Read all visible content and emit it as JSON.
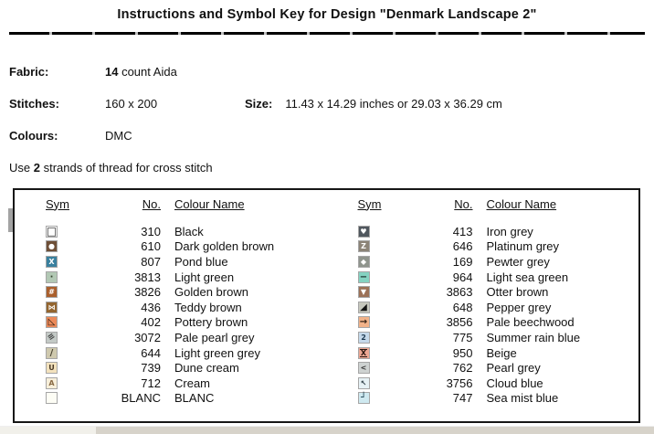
{
  "title": "Instructions and Symbol Key for Design \"Denmark Landscape 2\"",
  "info": {
    "fabric_label": "Fabric:",
    "fabric_value_bold": "14",
    "fabric_value_rest": " count Aida",
    "stitches_label": "Stitches:",
    "stitches_value": "160 x 200",
    "size_label": "Size:",
    "size_value": "11.43 x 14.29 inches or 29.03 x 36.29 cm",
    "colours_label": "Colours:",
    "colours_value": "DMC",
    "strands_prefix": "Use ",
    "strands_bold": "2",
    "strands_suffix": " strands of thread for cross stitch"
  },
  "key_table": {
    "headers": [
      "Sym",
      "No.",
      "Colour Name"
    ],
    "columns": [
      [
        {
          "no": "310",
          "name": "Black",
          "glyph": "□",
          "cls": "sq",
          "bg": "#ffffff",
          "fg": "#1a1a1a"
        },
        {
          "no": "610",
          "name": "Dark golden brown",
          "glyph": "●",
          "cls": "sm",
          "bg": "#6e4f37",
          "fg": "#ffffff"
        },
        {
          "no": "807",
          "name": "Pond blue",
          "glyph": "X",
          "cls": "sm",
          "bg": "#39809e",
          "fg": "#ffffff"
        },
        {
          "no": "3813",
          "name": "Light green",
          "glyph": "·",
          "cls": "",
          "bg": "#b2c8b4",
          "fg": "#36452f"
        },
        {
          "no": "3826",
          "name": "Golden brown",
          "glyph": "#",
          "cls": "sm",
          "bg": "#aa5f2c",
          "fg": "#ffffff"
        },
        {
          "no": "436",
          "name": "Teddy brown",
          "glyph": "⋈",
          "cls": "sm",
          "bg": "#93652f",
          "fg": "#ffffff"
        },
        {
          "no": "402",
          "name": "Pottery brown",
          "glyph": "◺",
          "cls": "",
          "bg": "#ec8a59",
          "fg": "#1e140e"
        },
        {
          "no": "3072",
          "name": "Pale pearl grey",
          "glyph": "≡",
          "cls": "rot",
          "bg": "#c3c9c6",
          "fg": "#3c3c3c"
        },
        {
          "no": "644",
          "name": "Light green grey",
          "glyph": "/",
          "cls": "",
          "bg": "#cfc9ae",
          "fg": "#46412f"
        },
        {
          "no": "739",
          "name": "Dune cream",
          "glyph": "U",
          "cls": "sm",
          "bg": "#f3e2bd",
          "fg": "#4a3a26"
        },
        {
          "no": "712",
          "name": "Cream",
          "glyph": "A",
          "cls": "sm",
          "bg": "#f7efda",
          "fg": "#8a6c46"
        },
        {
          "no": "BLANC",
          "name": "BLANC",
          "glyph": "",
          "cls": "",
          "bg": "#fdfdf5",
          "fg": "#000000"
        }
      ],
      [
        {
          "no": "413",
          "name": "Iron grey",
          "glyph": "♥",
          "cls": "sm",
          "bg": "#50575e",
          "fg": "#ffffff"
        },
        {
          "no": "646",
          "name": "Platinum grey",
          "glyph": "Z",
          "cls": "sm",
          "bg": "#8b8377",
          "fg": "#ffffff"
        },
        {
          "no": "169",
          "name": "Pewter grey",
          "glyph": "◆",
          "cls": "sm",
          "bg": "#8f948d",
          "fg": "#ffffff"
        },
        {
          "no": "964",
          "name": "Light sea green",
          "glyph": "−",
          "cls": "",
          "bg": "#84d2c1",
          "fg": "#172a27"
        },
        {
          "no": "3863",
          "name": "Otter brown",
          "glyph": "▼",
          "cls": "sm",
          "bg": "#9b7157",
          "fg": "#ffffff"
        },
        {
          "no": "648",
          "name": "Pepper grey",
          "glyph": "◢",
          "cls": "",
          "bg": "#c6c7bd",
          "fg": "#141414"
        },
        {
          "no": "3856",
          "name": "Pale beechwood",
          "glyph": "→",
          "cls": "",
          "bg": "#f1b289",
          "fg": "#352418"
        },
        {
          "no": "775",
          "name": "Summer rain blue",
          "glyph": "2",
          "cls": "sm",
          "bg": "#c5d9ea",
          "fg": "#1e3a52"
        },
        {
          "no": "950",
          "name": "Beige",
          "glyph": "X",
          "cls": "hg",
          "bg": "#eca793",
          "fg": "#281812"
        },
        {
          "no": "762",
          "name": "Pearl grey",
          "glyph": "<",
          "cls": "sm",
          "bg": "#ced2d1",
          "fg": "#333333"
        },
        {
          "no": "3756",
          "name": "Cloud blue",
          "glyph": "↖",
          "cls": "sm",
          "bg": "#e6f1f5",
          "fg": "#2a3a44"
        },
        {
          "no": "747",
          "name": "Sea mist blue",
          "glyph": "┘",
          "cls": "",
          "bg": "#cfe9f0",
          "fg": "#163a4a"
        }
      ]
    ]
  }
}
